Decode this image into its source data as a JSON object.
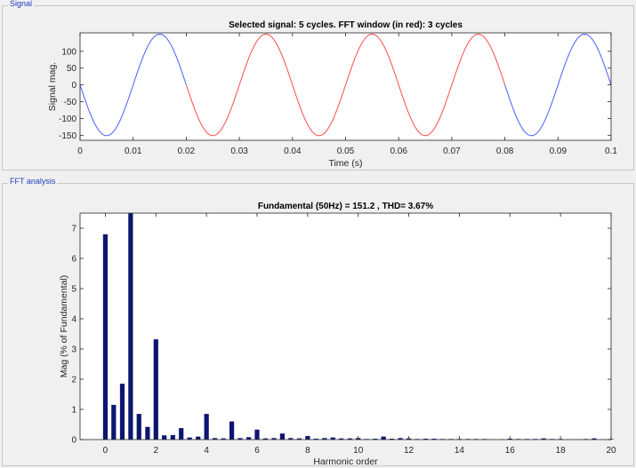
{
  "panels": {
    "signal_title": "Signal",
    "fft_title": "FFT analysis"
  },
  "colors": {
    "signal_outside": "#4a5cff",
    "signal_window": "#ff4a4a",
    "bars": "#0d1570",
    "axis": "#262626",
    "panel_border": "#c8c8c8",
    "panel_title": "#1f3fbf"
  },
  "chart_data": [
    {
      "type": "line",
      "title": "Selected signal: 5 cycles. FFT window (in red): 3 cycles",
      "xlabel": "Time (s)",
      "ylabel": "Signal mag.",
      "xlim": [
        0,
        0.1
      ],
      "ylim": [
        -165,
        155
      ],
      "xticks": [
        0,
        0.01,
        0.02,
        0.03,
        0.04,
        0.05,
        0.06,
        0.07,
        0.08,
        0.09,
        0.1
      ],
      "xtick_labels": [
        "0",
        "0.01",
        "0.02",
        "0.03",
        "0.04",
        "0.05",
        "0.06",
        "0.07",
        "0.08",
        "0.09",
        "0.1"
      ],
      "yticks": [
        -150,
        -100,
        -50,
        0,
        50,
        100
      ],
      "ytick_labels": [
        "-150",
        "-100",
        "-50",
        "0",
        "50",
        "100"
      ],
      "amplitude": 151.2,
      "frequency_hz": 50,
      "phase_deg": 180,
      "fft_window": [
        0.02,
        0.08
      ],
      "series": [
        {
          "segment": "outside-window",
          "x_range": [
            0,
            0.02
          ],
          "color": "#4a5cff"
        },
        {
          "segment": "fft-window",
          "x_range": [
            0.02,
            0.08
          ],
          "color": "#ff4a4a"
        },
        {
          "segment": "outside-window",
          "x_range": [
            0.08,
            0.1
          ],
          "color": "#4a5cff"
        }
      ],
      "grid": false
    },
    {
      "type": "bar",
      "title": "Fundamental (50Hz) = 151.2 , THD= 3.67%",
      "xlabel": "Harmonic order",
      "ylabel": "Mag (% of Fundamental)",
      "xlim": [
        -1,
        20
      ],
      "ylim": [
        0,
        7.5
      ],
      "xticks": [
        0,
        2,
        4,
        6,
        8,
        10,
        12,
        14,
        16,
        18,
        20
      ],
      "xtick_labels": [
        "0",
        "2",
        "4",
        "6",
        "8",
        "10",
        "12",
        "14",
        "16",
        "18",
        "20"
      ],
      "yticks": [
        0,
        1,
        2,
        3,
        4,
        5,
        6,
        7
      ],
      "ytick_labels": [
        "0",
        "1",
        "2",
        "3",
        "4",
        "5",
        "6",
        "7"
      ],
      "x": [
        0,
        0.33,
        0.67,
        1,
        1.33,
        1.67,
        2,
        2.33,
        2.67,
        3,
        3.33,
        3.67,
        4,
        4.33,
        4.67,
        5,
        5.33,
        5.67,
        6,
        6.33,
        6.67,
        7,
        7.33,
        7.67,
        8,
        8.33,
        8.67,
        9,
        9.33,
        9.67,
        10,
        10.33,
        10.67,
        11,
        11.33,
        11.67,
        12,
        12.33,
        12.67,
        13,
        13.33,
        13.67,
        14,
        14.33,
        14.67,
        15,
        15.33,
        15.67,
        16,
        16.33,
        16.67,
        17,
        17.33,
        17.67,
        18,
        18.33,
        18.67,
        19,
        19.33,
        19.67,
        20
      ],
      "values": [
        6.8,
        1.15,
        1.85,
        7.5,
        0.85,
        0.42,
        3.32,
        0.14,
        0.15,
        0.38,
        0.07,
        0.1,
        0.85,
        0.05,
        0.04,
        0.6,
        0.05,
        0.08,
        0.33,
        0.04,
        0.05,
        0.2,
        0.05,
        0.04,
        0.12,
        0.03,
        0.05,
        0.07,
        0.04,
        0.04,
        0.05,
        0.02,
        0.03,
        0.1,
        0.03,
        0.05,
        0.04,
        0.02,
        0.03,
        0.03,
        0.02,
        0.02,
        0.02,
        0.02,
        0.02,
        0.02,
        0.01,
        0.01,
        0.03,
        0.02,
        0.02,
        0.02,
        0.04,
        0.02,
        0.02,
        0.01,
        0.01,
        0.02,
        0.04,
        0.01,
        0.02
      ],
      "grid": false
    }
  ]
}
